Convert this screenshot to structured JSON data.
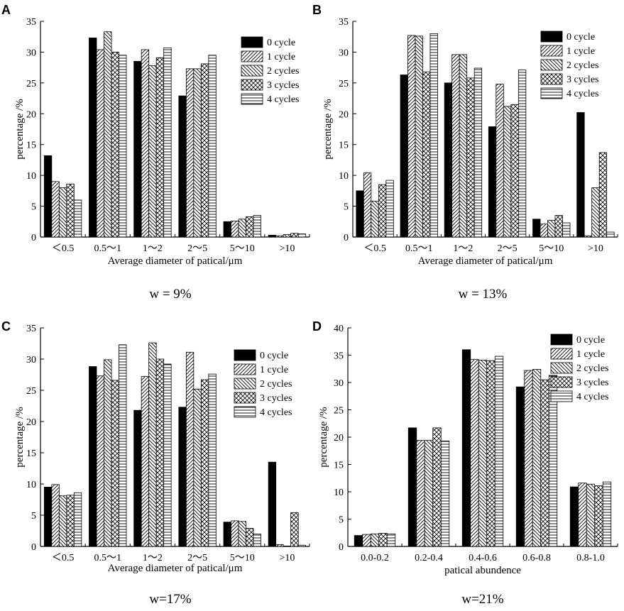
{
  "figure": {
    "series_names": [
      "0 cycle",
      "1 cycle",
      "2 cycles",
      "3 cycles",
      "4 cycles"
    ],
    "series_patterns": [
      "solid",
      "diag-up",
      "diag-down",
      "cross",
      "horizontal"
    ],
    "colors": {
      "ink": "#000000",
      "background": "#ffffff"
    }
  },
  "chart_data": [
    {
      "panel": "A",
      "type": "bar",
      "caption": "w = 9%",
      "xlabel": "Average diameter of patical/μm",
      "ylabel": "percentage /%",
      "ylim": [
        0,
        35
      ],
      "yticks": [
        0,
        5,
        10,
        15,
        20,
        25,
        30,
        35
      ],
      "categories": [
        "＜0.5",
        "0.5～1",
        "1～2",
        "2～5",
        "5～10",
        ">10"
      ],
      "legend_position": "top-right",
      "series": [
        {
          "name": "0 cycle",
          "values": [
            13.2,
            32.3,
            28.5,
            22.9,
            2.5,
            0.3
          ]
        },
        {
          "name": "1 cycle",
          "values": [
            9.0,
            30.4,
            30.4,
            27.3,
            2.6,
            0.2
          ]
        },
        {
          "name": "2 cycles",
          "values": [
            8.0,
            33.3,
            27.8,
            27.3,
            2.9,
            0.4
          ]
        },
        {
          "name": "3 cycles",
          "values": [
            8.6,
            30.0,
            29.1,
            28.1,
            3.3,
            0.6
          ]
        },
        {
          "name": "4 cycles",
          "values": [
            6.0,
            29.5,
            30.7,
            29.5,
            3.5,
            0.5
          ]
        }
      ]
    },
    {
      "panel": "B",
      "type": "bar",
      "caption": "w = 13%",
      "xlabel": "Average diameter of patical/μm",
      "ylabel": "percentage /%",
      "ylim": [
        0,
        35
      ],
      "yticks": [
        0,
        5,
        10,
        15,
        20,
        25,
        30,
        35
      ],
      "categories": [
        "＜0.5",
        "0.5～1",
        "1～2",
        "2～5",
        "5～10",
        ">10"
      ],
      "legend_position": "top-right",
      "series": [
        {
          "name": "0 cycle",
          "values": [
            7.5,
            26.3,
            25.0,
            17.9,
            2.9,
            20.2
          ]
        },
        {
          "name": "1 cycle",
          "values": [
            10.4,
            32.7,
            29.6,
            24.8,
            2.1,
            0.2
          ]
        },
        {
          "name": "2 cycles",
          "values": [
            5.8,
            32.6,
            29.6,
            21.2,
            2.7,
            8.0
          ]
        },
        {
          "name": "3 cycles",
          "values": [
            8.5,
            26.8,
            25.8,
            21.5,
            3.5,
            13.7
          ]
        },
        {
          "name": "4 cycles",
          "values": [
            9.2,
            33.0,
            27.4,
            27.1,
            2.3,
            0.8
          ]
        }
      ]
    },
    {
      "panel": "C",
      "type": "bar",
      "caption": "w=17%",
      "xlabel": "Average diameter of patical/μm",
      "ylabel": "percentage /%",
      "ylim": [
        0,
        35
      ],
      "yticks": [
        0,
        5,
        10,
        15,
        20,
        25,
        30,
        35
      ],
      "categories": [
        "＜0.5",
        "0.5～1",
        "1～2",
        "2～5",
        "5～10",
        ">10"
      ],
      "legend_position": "top-right",
      "series": [
        {
          "name": "0 cycle",
          "values": [
            9.5,
            28.8,
            21.8,
            22.3,
            3.9,
            13.5
          ]
        },
        {
          "name": "1 cycle",
          "values": [
            9.9,
            27.3,
            27.2,
            31.1,
            4.1,
            0.3
          ]
        },
        {
          "name": "2 cycles",
          "values": [
            8.1,
            29.9,
            32.6,
            25.2,
            4.0,
            0.0
          ]
        },
        {
          "name": "3 cycles",
          "values": [
            8.2,
            26.6,
            30.0,
            26.7,
            2.9,
            5.4
          ]
        },
        {
          "name": "4 cycles",
          "values": [
            8.6,
            32.3,
            29.2,
            27.6,
            2.0,
            0.2
          ]
        }
      ]
    },
    {
      "panel": "D",
      "type": "bar",
      "caption": "w=21%",
      "xlabel": "patical abundence",
      "ylabel": "percentage /%",
      "ylim": [
        0,
        40
      ],
      "yticks": [
        0,
        5,
        10,
        15,
        20,
        25,
        30,
        35,
        40
      ],
      "categories": [
        "0.0-0.2",
        "0.2-0.4",
        "0.4-0.6",
        "0.6-0.8",
        "0.8-1.0"
      ],
      "legend_position": "top-right",
      "series": [
        {
          "name": "0 cycle",
          "values": [
            2.0,
            21.7,
            36.0,
            29.2,
            10.9
          ]
        },
        {
          "name": "1 cycle",
          "values": [
            2.2,
            19.4,
            34.2,
            32.2,
            11.6
          ]
        },
        {
          "name": "2 cycles",
          "values": [
            2.3,
            19.4,
            34.1,
            32.4,
            11.4
          ]
        },
        {
          "name": "3 cycles",
          "values": [
            2.4,
            21.7,
            34.0,
            30.5,
            11.1
          ]
        },
        {
          "name": "4 cycles",
          "values": [
            2.3,
            19.3,
            34.8,
            31.3,
            11.8
          ]
        }
      ]
    }
  ]
}
